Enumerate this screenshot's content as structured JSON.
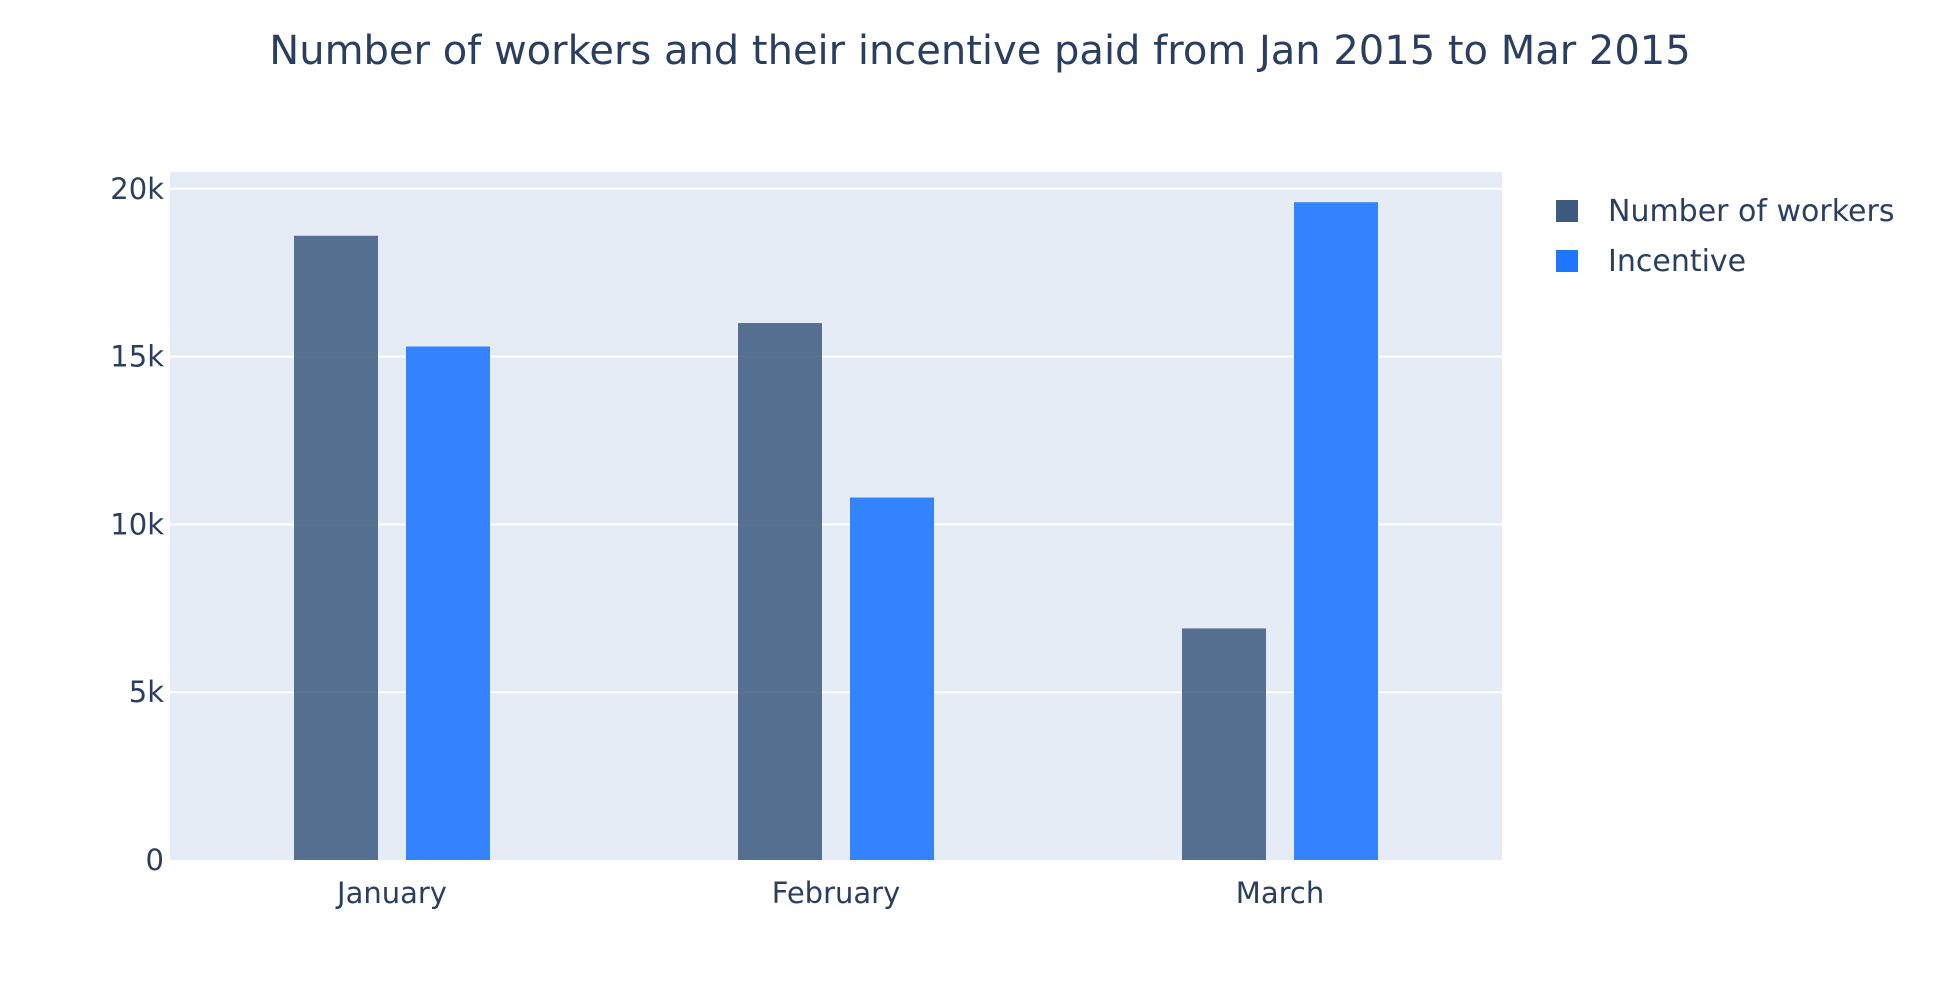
{
  "chart_data": {
    "type": "bar",
    "title": "Number of workers and their incentive paid from Jan 2015 to Mar 2015",
    "xlabel": "",
    "ylabel": "",
    "categories": [
      "January",
      "February",
      "March"
    ],
    "series": [
      {
        "name": "Number of workers",
        "color": "#3d5a80",
        "values": [
          18600,
          16000,
          6900
        ]
      },
      {
        "name": "Incentive",
        "color": "#1f77ff",
        "values": [
          15300,
          10800,
          19600
        ]
      }
    ],
    "ylim": [
      0,
      20500
    ],
    "yticks": [
      0,
      5000,
      10000,
      15000,
      20000
    ],
    "ytick_labels": [
      "0",
      "5k",
      "10k",
      "15k",
      "20k"
    ],
    "grid": true,
    "legend_position": "top-right"
  }
}
